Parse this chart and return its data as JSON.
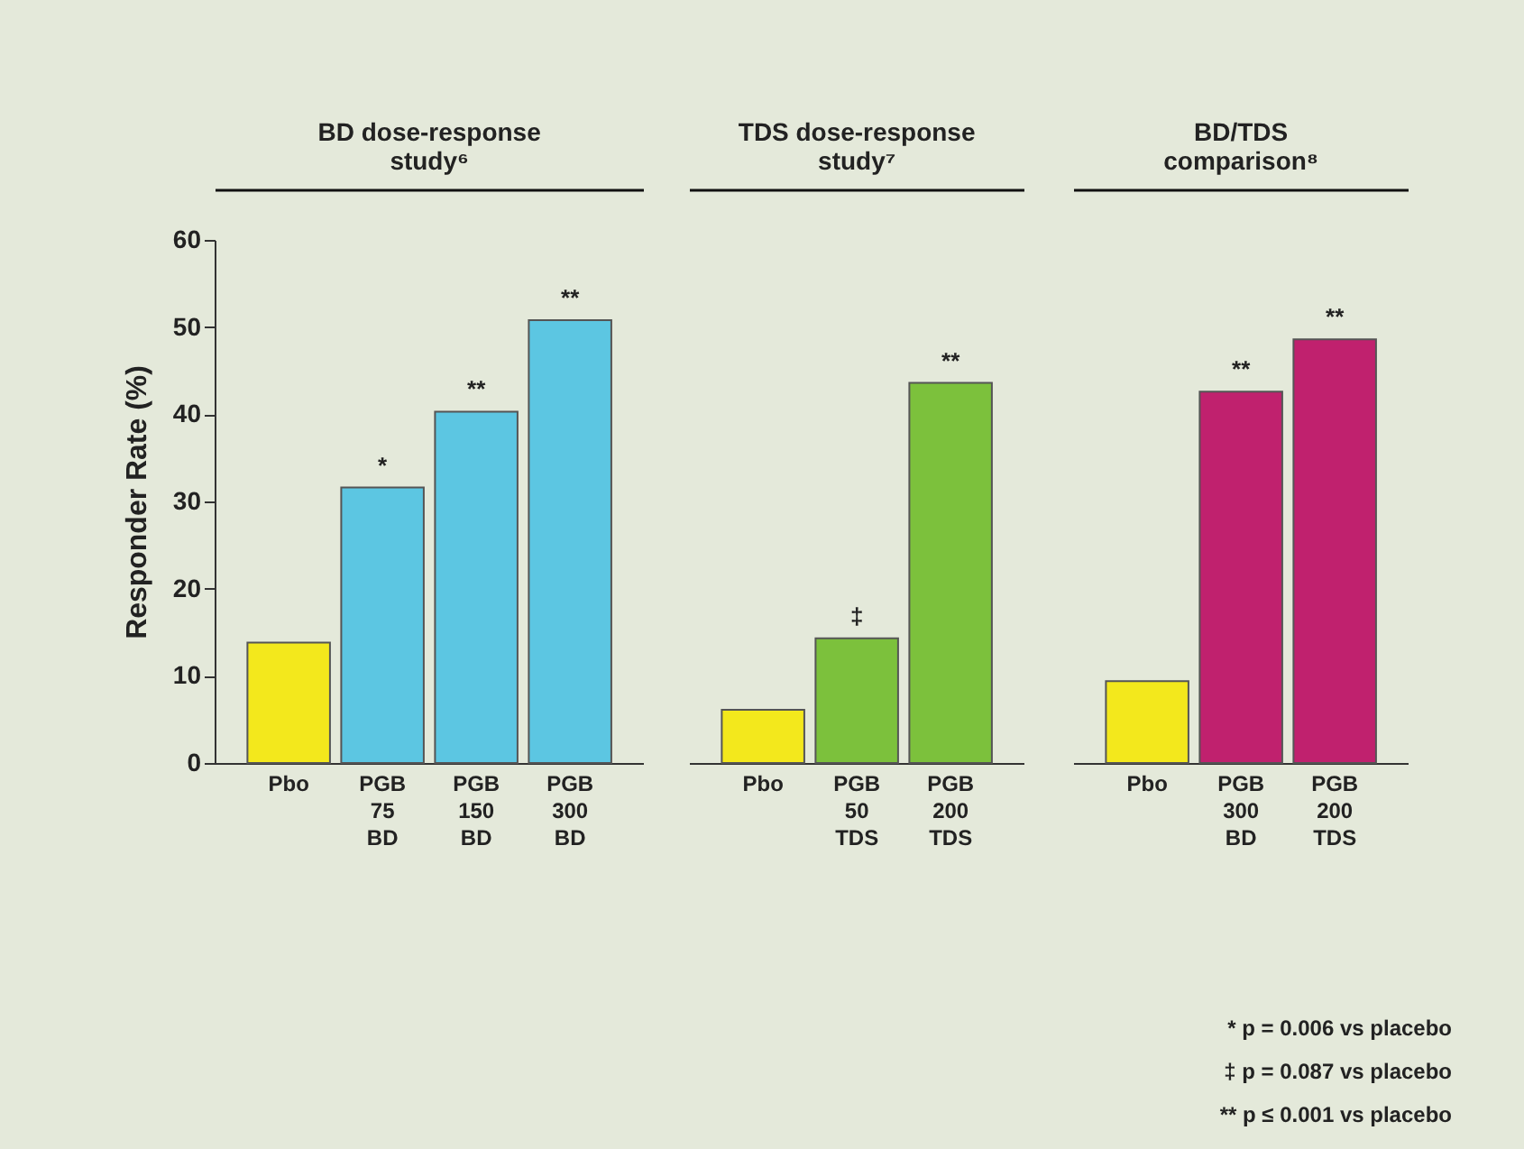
{
  "chart_data": [
    {
      "type": "bar",
      "title": "BD dose-response study⁶",
      "ylabel": "Responder Rate (%)",
      "categories": [
        "Pbo",
        "PGB 75 BD",
        "PGB 150 BD",
        "PGB 300 BD"
      ],
      "values": [
        13.8,
        31.6,
        40.3,
        50.8
      ],
      "colors": [
        "#f3e81c",
        "#5cc6e2",
        "#5cc6e2",
        "#5cc6e2"
      ],
      "ylim": [
        0,
        60
      ],
      "yticks": [
        0,
        10,
        20,
        30,
        40,
        50,
        60
      ],
      "annotations": [
        {
          "text": "*",
          "x": "PGB 75 BD",
          "y": 31.6
        },
        {
          "text": "**",
          "x": "PGB 150 BD",
          "y": 40.3
        },
        {
          "text": "**",
          "x": "PGB 300 BD",
          "y": 50.8
        }
      ]
    },
    {
      "type": "bar",
      "title": "TDS dose-response study⁷",
      "categories": [
        "Pbo",
        "PGB 50 TDS",
        "PGB 200 TDS"
      ],
      "values": [
        6.1,
        14.3,
        43.6
      ],
      "colors": [
        "#f3e81c",
        "#7cc13c",
        "#7cc13c"
      ],
      "ylim": [
        0,
        60
      ],
      "yticks": [
        0,
        10,
        20,
        30,
        40,
        50,
        60
      ],
      "tick_labels": "x",
      "annotations": [
        {
          "text": "‡",
          "x": "PGB 50 TDS",
          "y": 14.3
        },
        {
          "text": "**",
          "x": "PGB 200 TDS",
          "y": 43.6
        }
      ]
    },
    {
      "type": "bar",
      "title": "BD/TDS comparison⁸",
      "categories": [
        "Pbo",
        "PGB 300 BD",
        "PGB 200 TDS"
      ],
      "values": [
        9.4,
        42.6,
        48.6
      ],
      "colors": [
        "#f3e81c",
        "#c0216e",
        "#c0216e"
      ],
      "ylim": [
        0,
        60
      ],
      "yticks": [
        0,
        10,
        20,
        30,
        40,
        50,
        60
      ],
      "tick_labels": "x",
      "annotations": [
        {
          "text": "**",
          "x": "PGB 300 BD",
          "y": 42.6
        },
        {
          "text": "**",
          "x": "PGB 200 TDS",
          "y": 48.6
        },
        "* p = 0.006 vs placebo",
        "‡ p = 0.087 vs placebo",
        "** p ≤ 0.001 vs placebo"
      ]
    }
  ]
}
